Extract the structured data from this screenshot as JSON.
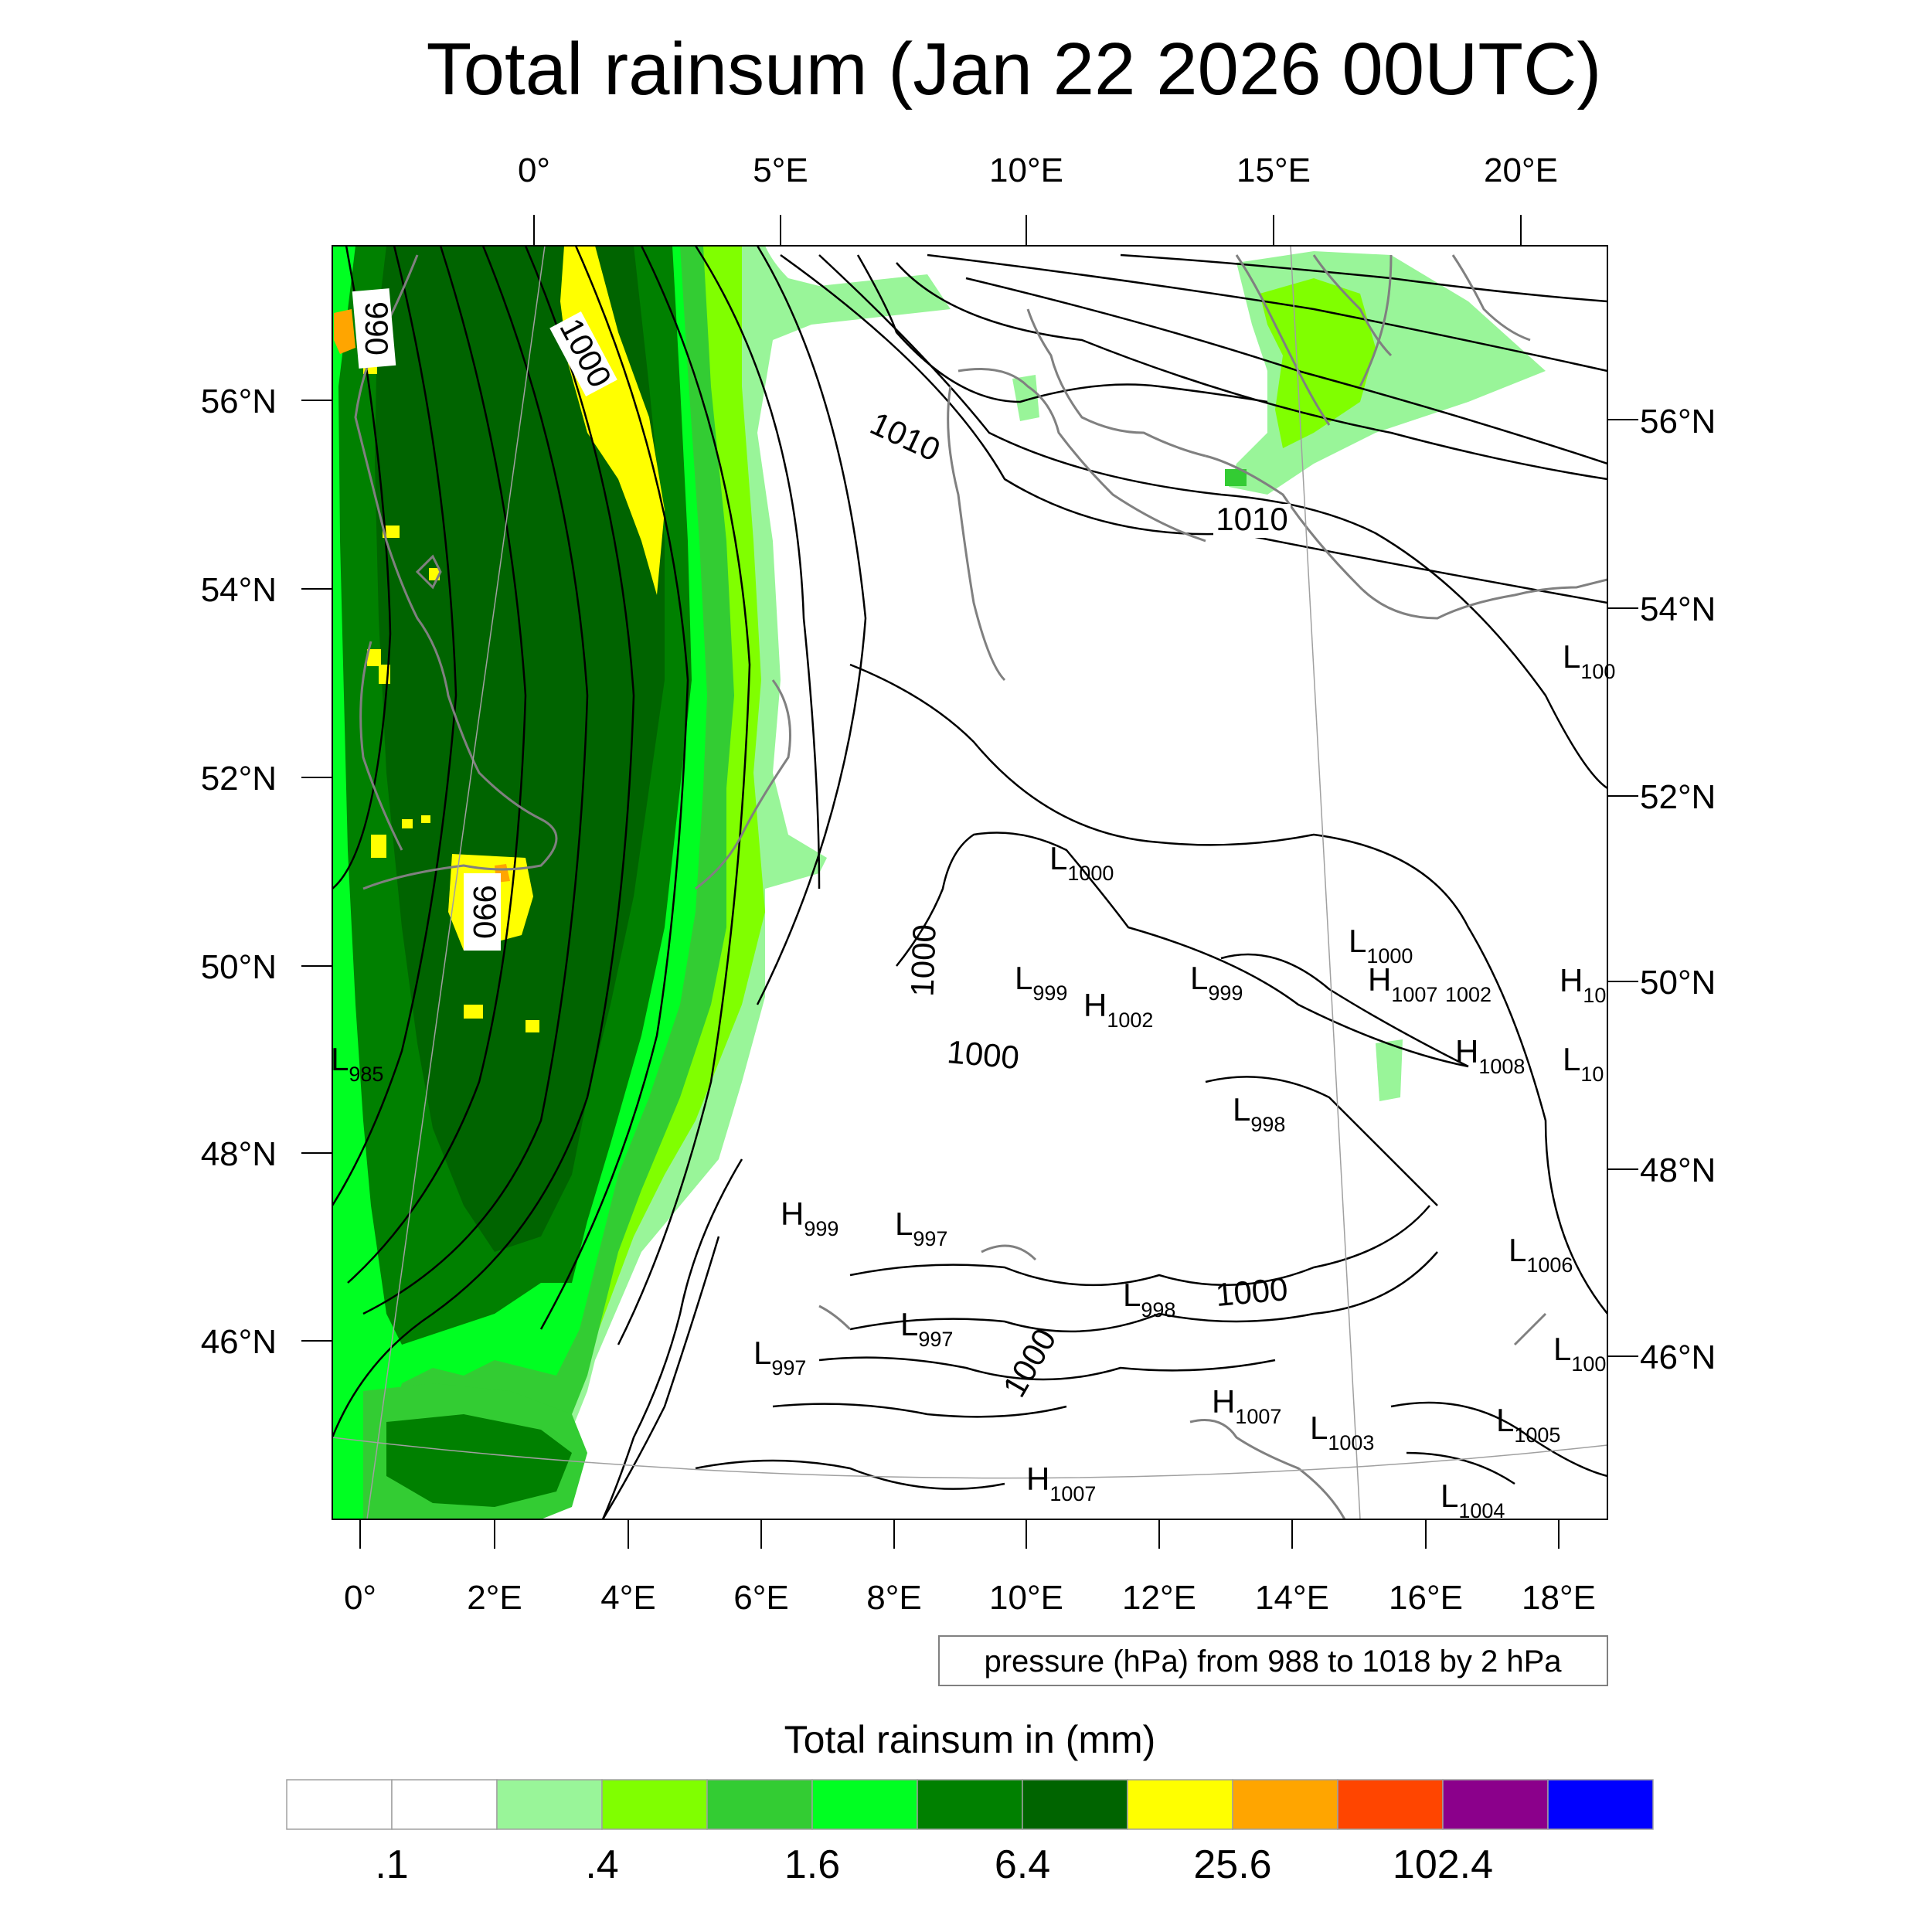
{
  "title": "Total rainsum (Jan 22 2026 00UTC)",
  "top_lon_labels": [
    "0°",
    "5°E",
    "10°E",
    "15°E",
    "20°E"
  ],
  "bottom_lon_labels": [
    "0°",
    "2°E",
    "4°E",
    "6°E",
    "8°E",
    "10°E",
    "12°E",
    "14°E",
    "16°E",
    "18°E"
  ],
  "left_lat_labels": [
    "56°N",
    "54°N",
    "52°N",
    "50°N",
    "48°N",
    "46°N"
  ],
  "right_lat_labels": [
    "56°N",
    "54°N",
    "52°N",
    "50°N",
    "48°N",
    "46°N"
  ],
  "contour_labels": [
    "990",
    "1000",
    "1010",
    "1010",
    "990",
    "1000",
    "1000",
    "1000",
    "1000"
  ],
  "pressure_centers": [
    {
      "letter": "L",
      "value": "1000"
    },
    {
      "letter": "L",
      "value": "999"
    },
    {
      "letter": "H",
      "value": "1002"
    },
    {
      "letter": "L",
      "value": "999"
    },
    {
      "letter": "L",
      "value": "1000"
    },
    {
      "letter": "H",
      "value": "1007"
    },
    {
      "letter": "",
      "value": "1002"
    },
    {
      "letter": "H",
      "value": "1008"
    },
    {
      "letter": "L",
      "value": "998"
    },
    {
      "letter": "L",
      "value": "985"
    },
    {
      "letter": "H",
      "value": "999"
    },
    {
      "letter": "L",
      "value": "997"
    },
    {
      "letter": "L",
      "value": "997"
    },
    {
      "letter": "L",
      "value": "997"
    },
    {
      "letter": "L",
      "value": "998"
    },
    {
      "letter": "H",
      "value": "1007"
    },
    {
      "letter": "L",
      "value": "1003"
    },
    {
      "letter": "L",
      "value": "1005"
    },
    {
      "letter": "H",
      "value": "1007"
    },
    {
      "letter": "L",
      "value": "1004"
    },
    {
      "letter": "L",
      "value": "1006"
    },
    {
      "letter": "L",
      "value": "100"
    },
    {
      "letter": "L",
      "value": "100"
    },
    {
      "letter": "H",
      "value": "10"
    },
    {
      "letter": "L",
      "value": "10"
    }
  ],
  "contour_note": "pressure (hPa) from 988 to 1018 by 2 hPa",
  "colorbar": {
    "label": "Total rainsum in (mm)",
    "colors": [
      "#ffffff",
      "#ffffff",
      "#99f599",
      "#80ff00",
      "#33cc33",
      "#00ff22",
      "#008000",
      "#006400",
      "#ffff00",
      "#ffa500",
      "#ff4500",
      "#8b008b",
      "#0000ff"
    ],
    "tick_labels": [
      ".1",
      ".4",
      "1.6",
      "6.4",
      "25.6",
      "102.4"
    ]
  }
}
